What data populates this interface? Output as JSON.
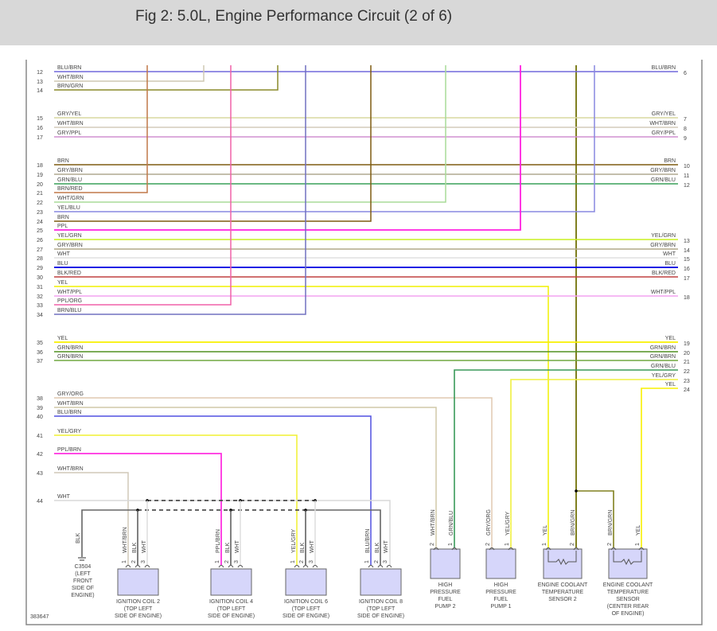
{
  "title": "Fig 2: 5.0L, Engine Performance Circuit (2 of 6)",
  "figure_id": "383647",
  "left_wires": [
    {
      "pin": "12",
      "label": "BLU/BRN",
      "color": "#7068dc"
    },
    {
      "pin": "13",
      "label": "WHT/BRN",
      "color": "#cfc8b4"
    },
    {
      "pin": "14",
      "label": "BRN/GRN",
      "color": "#8a8a2a"
    },
    {
      "pin": "15",
      "label": "GRY/YEL",
      "color": "#d8d8a0"
    },
    {
      "pin": "16",
      "label": "WHT/BRN",
      "color": "#d4ccbc"
    },
    {
      "pin": "17",
      "label": "GRY/PPL",
      "color": "#d090d0"
    },
    {
      "pin": "18",
      "label": "BRN",
      "color": "#7f5c10"
    },
    {
      "pin": "19",
      "label": "GRY/BRN",
      "color": "#b0a890"
    },
    {
      "pin": "20",
      "label": "GRN/BLU",
      "color": "#3aa05a"
    },
    {
      "pin": "21",
      "label": "BRN/RED",
      "color": "#c07848"
    },
    {
      "pin": "22",
      "label": "WHT/GRN",
      "color": "#a8dc98"
    },
    {
      "pin": "23",
      "label": "YEL/BLU",
      "color": "#8888e0"
    },
    {
      "pin": "24",
      "label": "BRN",
      "color": "#7f5c10"
    },
    {
      "pin": "25",
      "label": "PPL",
      "color": "#ff20e0"
    },
    {
      "pin": "26",
      "label": "YEL/GRN",
      "color": "#c8f020"
    },
    {
      "pin": "27",
      "label": "GRY/BRN",
      "color": "#b0a888"
    },
    {
      "pin": "28",
      "label": "WHT",
      "color": "#e0e0e0"
    },
    {
      "pin": "29",
      "label": "BLU",
      "color": "#0000e0"
    },
    {
      "pin": "30",
      "label": "BLK/RED",
      "color": "#c04040"
    },
    {
      "pin": "31",
      "label": "YEL",
      "color": "#f0f000"
    },
    {
      "pin": "32",
      "label": "WHT/PPL",
      "color": "#f4a4f0"
    },
    {
      "pin": "33",
      "label": "PPL/ORG",
      "color": "#f060a8"
    },
    {
      "pin": "34",
      "label": "BRN/BLU",
      "color": "#7070c0"
    },
    {
      "pin": "35",
      "label": "YEL",
      "color": "#f8f000"
    },
    {
      "pin": "36",
      "label": "GRN/BRN",
      "color": "#509020"
    },
    {
      "pin": "37",
      "label": "GRN/BRN",
      "color": "#70a840"
    },
    {
      "pin": "38",
      "label": "GRY/ORG",
      "color": "#e0c8b0"
    },
    {
      "pin": "39",
      "label": "WHT/BRN",
      "color": "#d0c8a8"
    },
    {
      "pin": "40",
      "label": "BLU/BRN",
      "color": "#5050e0"
    },
    {
      "pin": "41",
      "label": "YEL/GRY",
      "color": "#f0f030"
    },
    {
      "pin": "42",
      "label": "PPL/BRN",
      "color": "#ff30e0"
    },
    {
      "pin": "43",
      "label": "WHT/BRN",
      "color": "#d0c8b8"
    },
    {
      "pin": "44",
      "label": "WHT",
      "color": "#d8d8d8"
    }
  ],
  "right_labels": [
    {
      "pin": "6",
      "label": "BLU/BRN"
    },
    {
      "pin": "7",
      "label": "GRY/YEL"
    },
    {
      "pin": "8",
      "label": "WHT/BRN"
    },
    {
      "pin": "9",
      "label": "GRY/PPL"
    },
    {
      "pin": "10",
      "label": "BRN"
    },
    {
      "pin": "11",
      "label": "GRY/BRN"
    },
    {
      "pin": "12",
      "label": "GRN/BLU"
    },
    {
      "pin": "13",
      "label": "YEL/GRN"
    },
    {
      "pin": "14",
      "label": "GRY/BRN"
    },
    {
      "pin": "15",
      "label": "WHT"
    },
    {
      "pin": "16",
      "label": "BLU"
    },
    {
      "pin": "17",
      "label": "BLK/RED"
    },
    {
      "pin": "18",
      "label": "WHT/PPL"
    },
    {
      "pin": "19",
      "label": "YEL"
    },
    {
      "pin": "20",
      "label": "GRN/BRN"
    },
    {
      "pin": "21",
      "label": "GRN/BRN"
    },
    {
      "pin": "22",
      "label": "GRN/BLU",
      "color": "#3a9a5a"
    },
    {
      "pin": "23",
      "label": "YEL/GRY",
      "color": "#f0f040"
    },
    {
      "pin": "24",
      "label": "YEL",
      "color": "#f8f000"
    }
  ],
  "trunk": {
    "label": "BRN/GRN",
    "color": "#808020"
  },
  "ground": {
    "wire": "BLK",
    "lines": [
      "C3504",
      "(LEFT",
      "FRONT",
      "SIDE OF",
      "ENGINE)"
    ]
  },
  "components": [
    {
      "name": "ignition-coil-2",
      "lines": [
        "IGNITION COIL 2",
        "(TOP LEFT",
        "SIDE OF ENGINE)"
      ],
      "pins": [
        {
          "n": "1",
          "w": "WHT/BRN"
        },
        {
          "n": "2",
          "w": "BLK"
        },
        {
          "n": "3",
          "w": "WHT"
        }
      ]
    },
    {
      "name": "ignition-coil-4",
      "lines": [
        "IGNITION COIL 4",
        "(TOP LEFT",
        "SIDE OF ENGINE)"
      ],
      "pins": [
        {
          "n": "1",
          "w": "PPL/BRN"
        },
        {
          "n": "2",
          "w": "BLK"
        },
        {
          "n": "3",
          "w": "WHT"
        }
      ]
    },
    {
      "name": "ignition-coil-6",
      "lines": [
        "IGNITION COIL 6",
        "(TOP LEFT",
        "SIDE OF ENGINE)"
      ],
      "pins": [
        {
          "n": "1",
          "w": "YEL/GRY"
        },
        {
          "n": "2",
          "w": "BLK"
        },
        {
          "n": "3",
          "w": "WHT"
        }
      ]
    },
    {
      "name": "ignition-coil-8",
      "lines": [
        "IGNITION COIL 8",
        "(TOP LEFT",
        "SIDE OF ENGINE)"
      ],
      "pins": [
        {
          "n": "1",
          "w": "BLU/BRN"
        },
        {
          "n": "2",
          "w": "BLK"
        },
        {
          "n": "3",
          "w": "WHT"
        }
      ]
    },
    {
      "name": "high-pressure-fuel-pump-2",
      "lines": [
        "HIGH",
        "PRESSURE",
        "FUEL",
        "PUMP 2"
      ],
      "pins": [
        {
          "n": "2",
          "w": "WHT/BRN"
        },
        {
          "n": "1",
          "w": "GRN/BLU"
        }
      ]
    },
    {
      "name": "high-pressure-fuel-pump-1",
      "lines": [
        "HIGH",
        "PRESSURE",
        "FUEL",
        "PUMP 1"
      ],
      "pins": [
        {
          "n": "2",
          "w": "GRY/ORG"
        },
        {
          "n": "1",
          "w": "YEL/GRY"
        }
      ]
    },
    {
      "name": "engine-coolant-temperature-sensor-2",
      "lines": [
        "ENGINE COOLANT",
        "TEMPERATURE",
        "SENSOR 2"
      ],
      "pins": [
        {
          "n": "1",
          "w": "YEL"
        },
        {
          "n": "2",
          "w": "BRN/GRN"
        }
      ]
    },
    {
      "name": "engine-coolant-temperature-sensor",
      "lines": [
        "ENGINE COOLANT",
        "TEMPERATURE",
        "SENSOR",
        "(CENTER REAR",
        "OF ENGINE)"
      ],
      "pins": [
        {
          "n": "2",
          "w": "BRN/GRN"
        },
        {
          "n": "1",
          "w": "YEL"
        }
      ]
    }
  ]
}
